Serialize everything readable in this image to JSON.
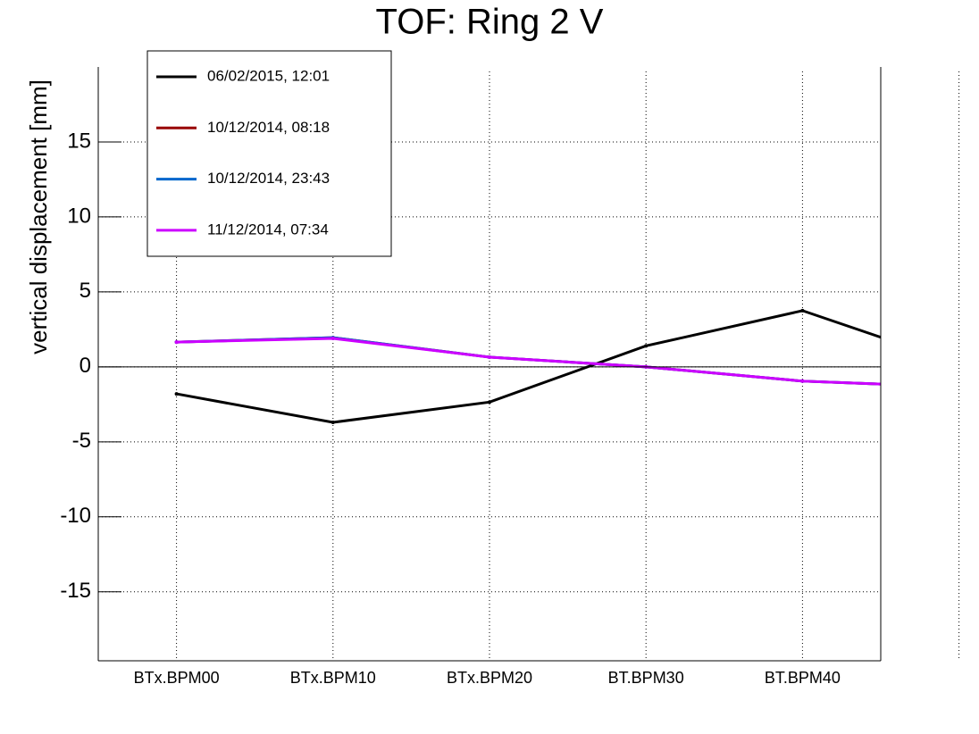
{
  "chart_data": {
    "type": "line",
    "title": "TOF: Ring 2 V",
    "y_label": "vertical displacement [mm]",
    "categories": [
      "BTx.BPM00",
      "BTx.BPM10",
      "BTx.BPM20",
      "BT.BPM30",
      "BT.BPM40",
      null
    ],
    "series": [
      {
        "name": "06/02/2015, 12:01",
        "color": "#000000",
        "values": [
          -1.8,
          -3.7,
          -2.35,
          1.4,
          3.75,
          0.2
        ]
      },
      {
        "name": "10/12/2014, 08:18",
        "color": "#990000",
        "values": [
          1.65,
          1.95,
          0.65,
          0.0,
          -0.95,
          -1.35
        ]
      },
      {
        "name": "10/12/2014, 23:43",
        "color": "#0066cc",
        "values": [
          1.65,
          1.95,
          0.65,
          0.0,
          -0.95,
          -1.35
        ]
      },
      {
        "name": "11/12/2014, 07:34",
        "color": "#cc00ff",
        "values": [
          1.65,
          1.9,
          0.65,
          0.0,
          -0.95,
          -1.35
        ]
      }
    ],
    "ylim": [
      -19.6,
      20
    ],
    "yticks": [
      -15,
      -10,
      -5,
      0,
      5,
      10,
      15
    ],
    "grid": true,
    "legend": "top-left"
  }
}
